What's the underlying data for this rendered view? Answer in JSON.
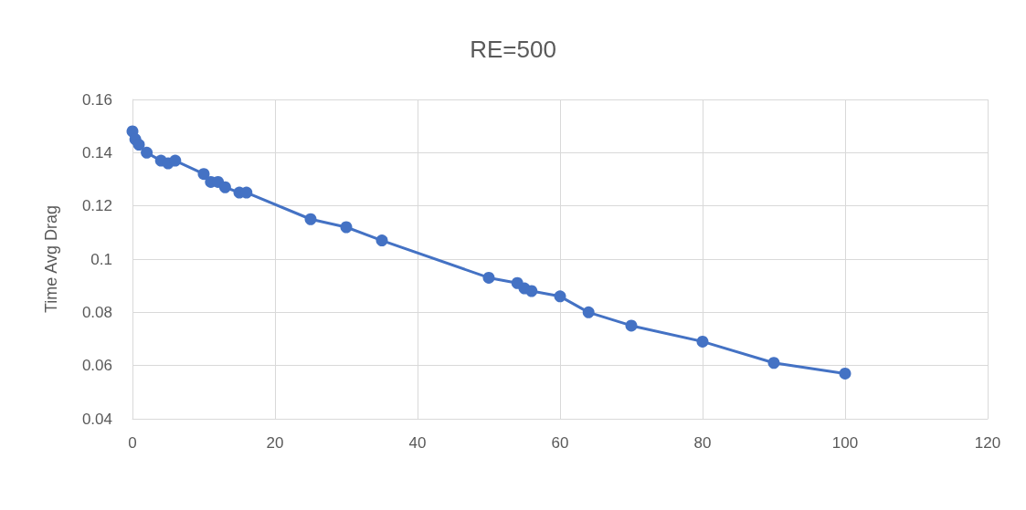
{
  "chart_data": {
    "type": "line",
    "title": "RE=500",
    "ylabel": "Time Avg Drag",
    "x": [
      0,
      0.4,
      0.9,
      2,
      4,
      5,
      6,
      10,
      11,
      12,
      13,
      15,
      16,
      25,
      30,
      35,
      50,
      54,
      55,
      56,
      60,
      64,
      70,
      80,
      90,
      100
    ],
    "series": [
      {
        "color": "#4472c4",
        "values": [
          0.148,
          0.145,
          0.143,
          0.14,
          0.137,
          0.136,
          0.137,
          0.132,
          0.129,
          0.129,
          0.127,
          0.125,
          0.125,
          0.115,
          0.112,
          0.107,
          0.093,
          0.091,
          0.089,
          0.088,
          0.086,
          0.08,
          0.075,
          0.069,
          0.061,
          0.057
        ]
      }
    ],
    "xlim": [
      0,
      120
    ],
    "xticks": [
      0,
      20,
      40,
      60,
      80,
      100,
      120
    ],
    "ylim": [
      0.04,
      0.16
    ],
    "yticks": [
      0.04,
      0.06,
      0.08,
      0.1,
      0.12,
      0.14,
      0.16
    ],
    "grid": true,
    "marker": "circle",
    "line_style": "solid"
  }
}
